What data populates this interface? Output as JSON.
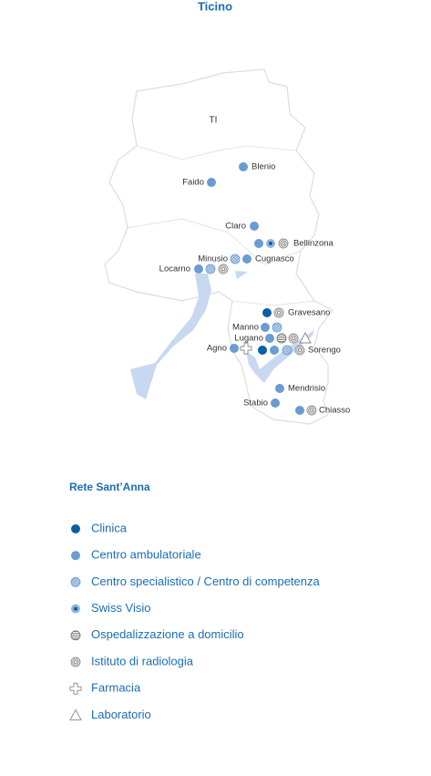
{
  "title": "Ticino",
  "region": "TI",
  "places": [
    "Blenio",
    "Faido",
    "Claro",
    "Bellinzona",
    "Minusio",
    "Cugnasco",
    "Locarno",
    "Gravesano",
    "Manno",
    "Lugano",
    "Agno",
    "Sorengo",
    "Mendrisio",
    "Stabio",
    "Chiasso"
  ],
  "legend": {
    "title": "Rete Sant’Anna",
    "items": [
      "Clinica",
      "Centro ambulatoriale",
      "Centro specialistico / Centro di competenza",
      "Swiss Visio",
      "Ospedalizzazione a domicilio",
      "Istituto di radiologia",
      "Farmacia",
      "Laboratorio"
    ]
  }
}
